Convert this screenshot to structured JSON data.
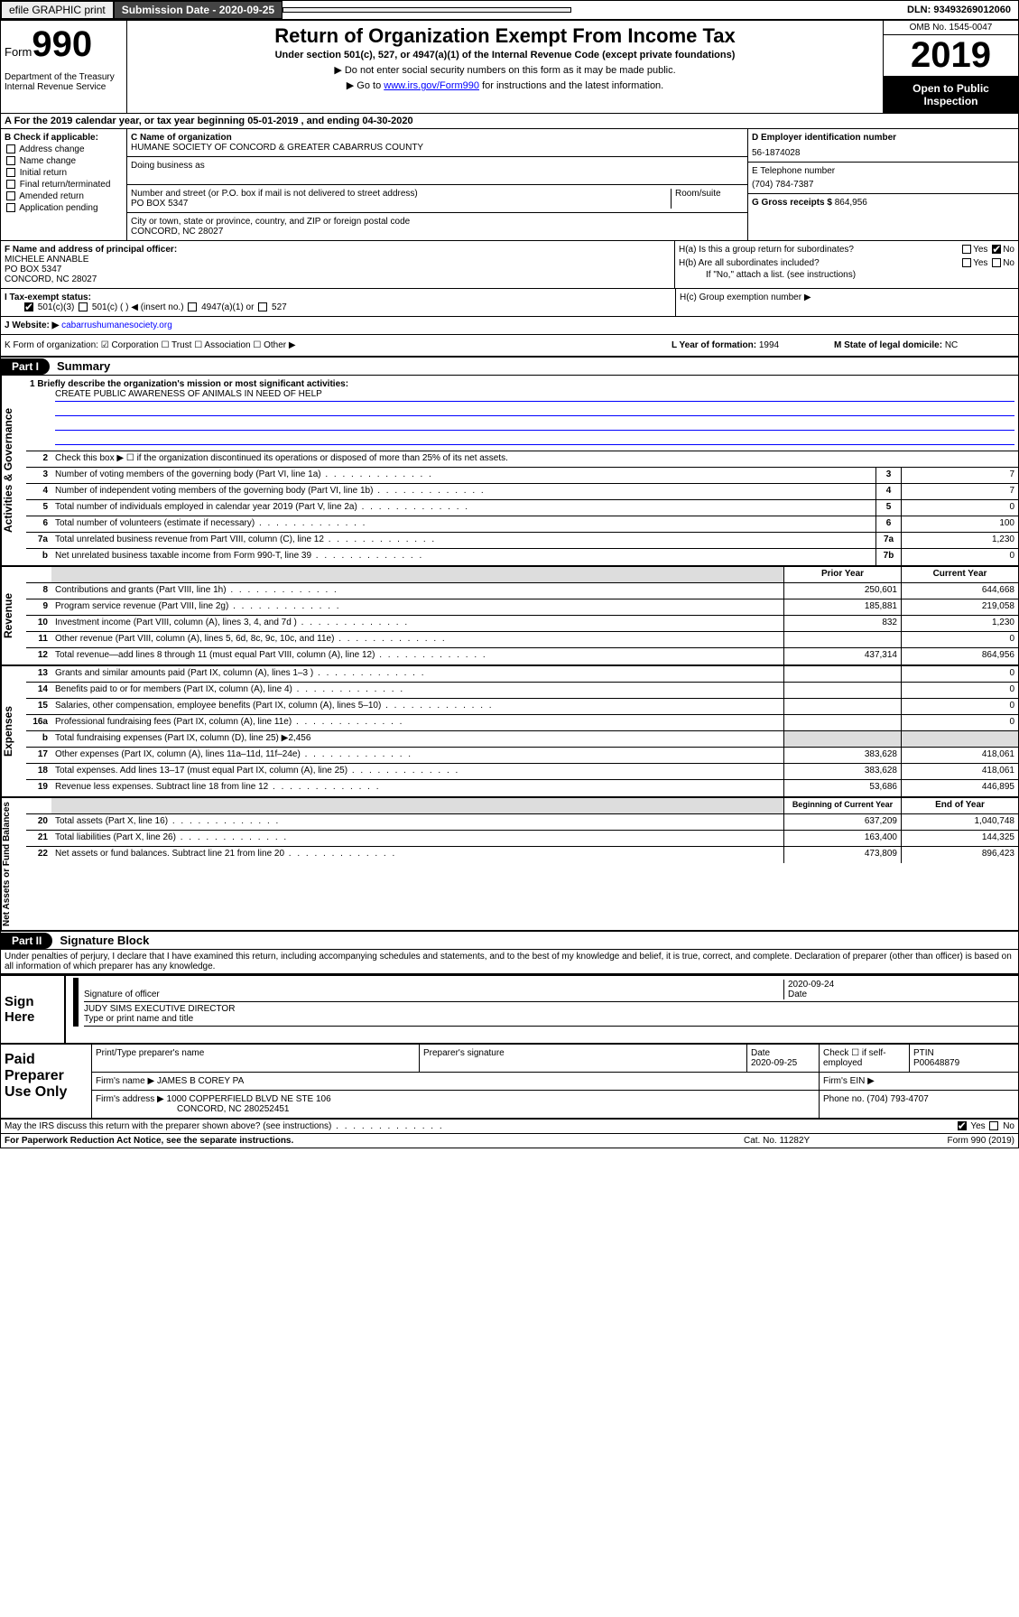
{
  "topbar": {
    "efile_btn": "efile GRAPHIC print",
    "subdate_label": "Submission Date - 2020-09-25",
    "dln": "DLN: 93493269012060"
  },
  "header": {
    "form_label": "Form",
    "form_num": "990",
    "dept": "Department of the Treasury\nInternal Revenue Service",
    "title": "Return of Organization Exempt From Income Tax",
    "sub": "Under section 501(c), 527, or 4947(a)(1) of the Internal Revenue Code (except private foundations)",
    "note1": "▶ Do not enter social security numbers on this form as it may be made public.",
    "note2_pre": "▶ Go to ",
    "note2_link": "www.irs.gov/Form990",
    "note2_post": " for instructions and the latest information.",
    "omb": "OMB No. 1545-0047",
    "year": "2019",
    "open": "Open to Public Inspection"
  },
  "rowA": "A   For the 2019 calendar year, or tax year beginning 05-01-2019    , and ending 04-30-2020",
  "boxB": {
    "label": "B Check if applicable:",
    "items": [
      "Address change",
      "Name change",
      "Initial return",
      "Final return/terminated",
      "Amended return",
      "Application pending"
    ]
  },
  "boxC": {
    "name_label": "C Name of organization",
    "name": "HUMANE SOCIETY OF CONCORD & GREATER CABARRUS COUNTY",
    "dba_label": "Doing business as",
    "addr_label": "Number and street (or P.O. box if mail is not delivered to street address)",
    "room_label": "Room/suite",
    "addr": "PO BOX 5347",
    "city_label": "City or town, state or province, country, and ZIP or foreign postal code",
    "city": "CONCORD, NC  28027"
  },
  "boxD": {
    "label": "D Employer identification number",
    "val": "56-1874028"
  },
  "boxE": {
    "label": "E Telephone number",
    "val": "(704) 784-7387"
  },
  "boxG": {
    "label": "G Gross receipts $",
    "val": "864,956"
  },
  "boxF": {
    "label": "F  Name and address of principal officer:",
    "name": "MICHELE ANNABLE",
    "line1": "PO BOX 5347",
    "line2": "CONCORD, NC  28027"
  },
  "boxH": {
    "a": "H(a)  Is this a group return for subordinates?",
    "b": "H(b)  Are all subordinates included?",
    "note": "If \"No,\" attach a list. (see instructions)",
    "c": "H(c)  Group exemption number ▶",
    "yes": "Yes",
    "no": "No"
  },
  "boxI": {
    "label": "I   Tax-exempt status:",
    "o1": "501(c)(3)",
    "o2": "501(c) (   ) ◀ (insert no.)",
    "o3": "4947(a)(1) or",
    "o4": "527"
  },
  "boxJ": {
    "label": "J   Website: ▶",
    "val": "cabarrushumanesociety.org"
  },
  "rowK": {
    "k": "K Form of organization:    ☑ Corporation   ☐ Trust   ☐ Association   ☐ Other ▶",
    "l_label": "L Year of formation:",
    "l_val": "1994",
    "m_label": "M State of legal domicile:",
    "m_val": "NC"
  },
  "part1": {
    "num": "Part I",
    "title": "Summary"
  },
  "mission": {
    "label": "1   Briefly describe the organization's mission or most significant activities:",
    "text": "CREATE PUBLIC AWARENESS OF ANIMALS IN NEED OF HELP"
  },
  "gov_lines": [
    {
      "num": "2",
      "desc": "Check this box ▶ ☐  if the organization discontinued its operations or disposed of more than 25% of its net assets."
    },
    {
      "num": "3",
      "desc": "Number of voting members of the governing body (Part VI, line 1a)",
      "box": "3",
      "val": "7"
    },
    {
      "num": "4",
      "desc": "Number of independent voting members of the governing body (Part VI, line 1b)",
      "box": "4",
      "val": "7"
    },
    {
      "num": "5",
      "desc": "Total number of individuals employed in calendar year 2019 (Part V, line 2a)",
      "box": "5",
      "val": "0"
    },
    {
      "num": "6",
      "desc": "Total number of volunteers (estimate if necessary)",
      "box": "6",
      "val": "100"
    },
    {
      "num": "7a",
      "desc": "Total unrelated business revenue from Part VIII, column (C), line 12",
      "box": "7a",
      "val": "1,230"
    },
    {
      "num": "b",
      "desc": "Net unrelated business taxable income from Form 990-T, line 39",
      "box": "7b",
      "val": "0"
    }
  ],
  "rev_header": {
    "py": "Prior Year",
    "cy": "Current Year"
  },
  "rev_lines": [
    {
      "num": "8",
      "desc": "Contributions and grants (Part VIII, line 1h)",
      "py": "250,601",
      "cy": "644,668"
    },
    {
      "num": "9",
      "desc": "Program service revenue (Part VIII, line 2g)",
      "py": "185,881",
      "cy": "219,058"
    },
    {
      "num": "10",
      "desc": "Investment income (Part VIII, column (A), lines 3, 4, and 7d )",
      "py": "832",
      "cy": "1,230"
    },
    {
      "num": "11",
      "desc": "Other revenue (Part VIII, column (A), lines 5, 6d, 8c, 9c, 10c, and 11e)",
      "py": "",
      "cy": "0"
    },
    {
      "num": "12",
      "desc": "Total revenue—add lines 8 through 11 (must equal Part VIII, column (A), line 12)",
      "py": "437,314",
      "cy": "864,956"
    }
  ],
  "exp_lines": [
    {
      "num": "13",
      "desc": "Grants and similar amounts paid (Part IX, column (A), lines 1–3 )",
      "py": "",
      "cy": "0"
    },
    {
      "num": "14",
      "desc": "Benefits paid to or for members (Part IX, column (A), line 4)",
      "py": "",
      "cy": "0"
    },
    {
      "num": "15",
      "desc": "Salaries, other compensation, employee benefits (Part IX, column (A), lines 5–10)",
      "py": "",
      "cy": "0"
    },
    {
      "num": "16a",
      "desc": "Professional fundraising fees (Part IX, column (A), line 11e)",
      "py": "",
      "cy": "0"
    },
    {
      "num": "b",
      "desc": "Total fundraising expenses (Part IX, column (D), line 25) ▶2,456",
      "shade": true
    },
    {
      "num": "17",
      "desc": "Other expenses (Part IX, column (A), lines 11a–11d, 11f–24e)",
      "py": "383,628",
      "cy": "418,061"
    },
    {
      "num": "18",
      "desc": "Total expenses. Add lines 13–17 (must equal Part IX, column (A), line 25)",
      "py": "383,628",
      "cy": "418,061"
    },
    {
      "num": "19",
      "desc": "Revenue less expenses. Subtract line 18 from line 12",
      "py": "53,686",
      "cy": "446,895"
    }
  ],
  "net_header": {
    "py": "Beginning of Current Year",
    "cy": "End of Year"
  },
  "net_lines": [
    {
      "num": "20",
      "desc": "Total assets (Part X, line 16)",
      "py": "637,209",
      "cy": "1,040,748"
    },
    {
      "num": "21",
      "desc": "Total liabilities (Part X, line 26)",
      "py": "163,400",
      "cy": "144,325"
    },
    {
      "num": "22",
      "desc": "Net assets or fund balances. Subtract line 21 from line 20",
      "py": "473,809",
      "cy": "896,423"
    }
  ],
  "side_labels": {
    "gov": "Activities & Governance",
    "rev": "Revenue",
    "exp": "Expenses",
    "net": "Net Assets or Fund Balances"
  },
  "part2": {
    "num": "Part II",
    "title": "Signature Block"
  },
  "declaration": "Under penalties of perjury, I declare that I have examined this return, including accompanying schedules and statements, and to the best of my knowledge and belief, it is true, correct, and complete. Declaration of preparer (other than officer) is based on all information of which preparer has any knowledge.",
  "sign": {
    "label": "Sign Here",
    "sig_of_officer": "Signature of officer",
    "date": "2020-09-24",
    "date_label": "Date",
    "name": "JUDY SIMS  EXECUTIVE DIRECTOR",
    "name_label": "Type or print name and title"
  },
  "paid": {
    "label": "Paid Preparer Use Only",
    "h1": "Print/Type preparer's name",
    "h2": "Preparer's signature",
    "h3": "Date",
    "h3v": "2020-09-25",
    "h4": "Check ☐ if self-employed",
    "h5": "PTIN",
    "h5v": "P00648879",
    "firm_label": "Firm's name     ▶",
    "firm": "JAMES B COREY PA",
    "ein_label": "Firm's EIN ▶",
    "addr_label": "Firm's address ▶",
    "addr1": "1000 COPPERFIELD BLVD NE STE 106",
    "addr2": "CONCORD, NC  280252451",
    "phone_label": "Phone no.",
    "phone": "(704) 793-4707"
  },
  "discuss": {
    "q": "May the IRS discuss this return with the preparer shown above? (see instructions)",
    "yes": "Yes",
    "no": "No"
  },
  "footer": {
    "left": "For Paperwork Reduction Act Notice, see the separate instructions.",
    "mid": "Cat. No. 11282Y",
    "right": "Form 990 (2019)"
  }
}
